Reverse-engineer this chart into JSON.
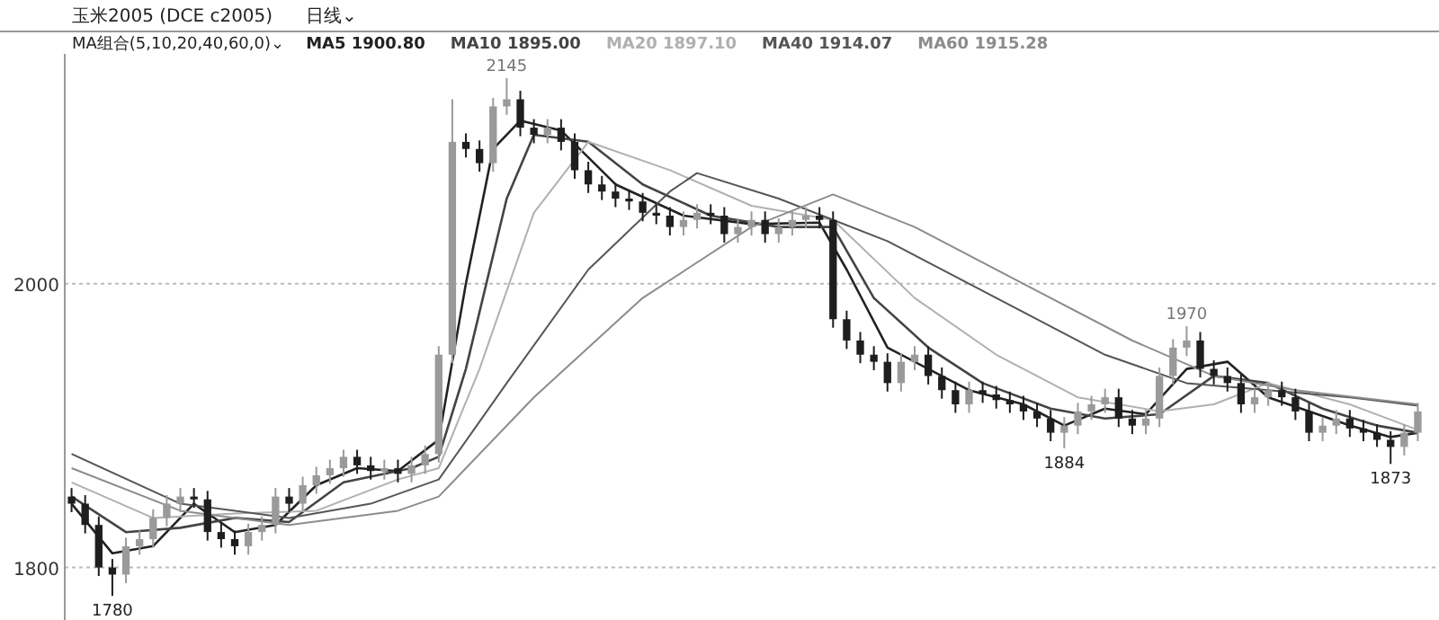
{
  "chart_data": {
    "type": "candlestick",
    "title": "玉米2005 (DCE c2005)",
    "subtitle": "日线⌄",
    "legend_title": "MA组合(5,10,20,40,60,0)⌄",
    "legend": "top left",
    "grid": "y",
    "ylim": [
      1763,
      2162
    ],
    "yticks": [
      1800,
      2000
    ],
    "tick_labels": "y",
    "categories": [
      null,
      null,
      null,
      null,
      null,
      null,
      null,
      null,
      null,
      null,
      null,
      null,
      null,
      null,
      null,
      null,
      null,
      null,
      null,
      null,
      null,
      null,
      null,
      null,
      null,
      null,
      null,
      null,
      null,
      null,
      null,
      null,
      null,
      null,
      null,
      null,
      null,
      null,
      null,
      null,
      null,
      null,
      null,
      null,
      null,
      null,
      null,
      null,
      null,
      null,
      null,
      null,
      null,
      null,
      null,
      null,
      null,
      null,
      null,
      null,
      null,
      null,
      null,
      null,
      null,
      null,
      null,
      null,
      null,
      null,
      null,
      null,
      null,
      null,
      null,
      null,
      null,
      null,
      null,
      null,
      null,
      null,
      null,
      null,
      null,
      null,
      null,
      null,
      null,
      null,
      null,
      null,
      null,
      null,
      null,
      null,
      null,
      null,
      null,
      null
    ],
    "ohlc": [
      [
        1850,
        1856,
        1839,
        1845
      ],
      [
        1845,
        1851,
        1824,
        1830
      ],
      [
        1830,
        1836,
        1794,
        1800
      ],
      [
        1800,
        1806,
        1780,
        1795
      ],
      [
        1795,
        1821,
        1789,
        1815
      ],
      [
        1815,
        1826,
        1809,
        1820
      ],
      [
        1820,
        1841,
        1814,
        1835
      ],
      [
        1835,
        1851,
        1829,
        1845
      ],
      [
        1845,
        1856,
        1839,
        1850
      ],
      [
        1850,
        1856,
        1842,
        1848
      ],
      [
        1848,
        1854,
        1819,
        1825
      ],
      [
        1825,
        1831,
        1814,
        1820
      ],
      [
        1820,
        1826,
        1809,
        1815
      ],
      [
        1815,
        1831,
        1809,
        1825
      ],
      [
        1825,
        1836,
        1819,
        1830
      ],
      [
        1830,
        1856,
        1824,
        1850
      ],
      [
        1850,
        1856,
        1839,
        1845
      ],
      [
        1845,
        1864,
        1839,
        1858
      ],
      [
        1858,
        1871,
        1852,
        1865
      ],
      [
        1865,
        1876,
        1859,
        1870
      ],
      [
        1870,
        1883,
        1864,
        1878
      ],
      [
        1878,
        1883,
        1866,
        1872
      ],
      [
        1872,
        1878,
        1862,
        1868
      ],
      [
        1868,
        1876,
        1862,
        1870
      ],
      [
        1870,
        1876,
        1860,
        1866
      ],
      [
        1866,
        1878,
        1860,
        1872
      ],
      [
        1872,
        1886,
        1866,
        1880
      ],
      [
        1880,
        1956,
        1874,
        1950
      ],
      [
        1950,
        2130,
        1944,
        2100
      ],
      [
        2100,
        2106,
        2089,
        2095
      ],
      [
        2095,
        2101,
        2079,
        2085
      ],
      [
        2085,
        2131,
        2079,
        2125
      ],
      [
        2125,
        2145,
        2119,
        2130
      ],
      [
        2130,
        2136,
        2104,
        2110
      ],
      [
        2110,
        2116,
        2099,
        2105
      ],
      [
        2105,
        2116,
        2099,
        2110
      ],
      [
        2110,
        2116,
        2094,
        2100
      ],
      [
        2100,
        2106,
        2074,
        2080
      ],
      [
        2080,
        2086,
        2064,
        2070
      ],
      [
        2070,
        2076,
        2059,
        2065
      ],
      [
        2065,
        2071,
        2054,
        2060
      ],
      [
        2060,
        2066,
        2052,
        2058
      ],
      [
        2058,
        2064,
        2044,
        2050
      ],
      [
        2050,
        2056,
        2042,
        2048
      ],
      [
        2048,
        2054,
        2034,
        2040
      ],
      [
        2040,
        2051,
        2034,
        2045
      ],
      [
        2045,
        2056,
        2039,
        2050
      ],
      [
        2050,
        2056,
        2042,
        2048
      ],
      [
        2048,
        2054,
        2029,
        2035
      ],
      [
        2035,
        2046,
        2029,
        2040
      ],
      [
        2040,
        2051,
        2034,
        2045
      ],
      [
        2045,
        2051,
        2029,
        2035
      ],
      [
        2035,
        2046,
        2029,
        2040
      ],
      [
        2040,
        2051,
        2034,
        2045
      ],
      [
        2045,
        2054,
        2039,
        2048
      ],
      [
        2048,
        2054,
        2039,
        2045
      ],
      [
        2045,
        2051,
        1969,
        1975
      ],
      [
        1975,
        1981,
        1954,
        1960
      ],
      [
        1960,
        1966,
        1944,
        1950
      ],
      [
        1950,
        1956,
        1939,
        1945
      ],
      [
        1945,
        1951,
        1924,
        1930
      ],
      [
        1930,
        1951,
        1924,
        1945
      ],
      [
        1945,
        1956,
        1939,
        1950
      ],
      [
        1950,
        1956,
        1929,
        1935
      ],
      [
        1935,
        1941,
        1919,
        1925
      ],
      [
        1925,
        1931,
        1909,
        1915
      ],
      [
        1915,
        1931,
        1909,
        1925
      ],
      [
        1925,
        1931,
        1916,
        1922
      ],
      [
        1922,
        1928,
        1912,
        1918
      ],
      [
        1918,
        1924,
        1909,
        1915
      ],
      [
        1915,
        1921,
        1904,
        1910
      ],
      [
        1910,
        1916,
        1899,
        1905
      ],
      [
        1905,
        1911,
        1889,
        1895
      ],
      [
        1895,
        1906,
        1884,
        1900
      ],
      [
        1900,
        1916,
        1894,
        1910
      ],
      [
        1910,
        1921,
        1904,
        1915
      ],
      [
        1915,
        1926,
        1909,
        1920
      ],
      [
        1920,
        1926,
        1899,
        1905
      ],
      [
        1905,
        1911,
        1894,
        1900
      ],
      [
        1900,
        1911,
        1894,
        1905
      ],
      [
        1905,
        1941,
        1899,
        1935
      ],
      [
        1935,
        1961,
        1929,
        1955
      ],
      [
        1955,
        1970,
        1949,
        1960
      ],
      [
        1960,
        1966,
        1934,
        1940
      ],
      [
        1940,
        1946,
        1929,
        1935
      ],
      [
        1935,
        1941,
        1924,
        1930
      ],
      [
        1930,
        1936,
        1909,
        1915
      ],
      [
        1915,
        1926,
        1909,
        1920
      ],
      [
        1920,
        1931,
        1914,
        1925
      ],
      [
        1925,
        1931,
        1914,
        1920
      ],
      [
        1920,
        1926,
        1904,
        1910
      ],
      [
        1910,
        1916,
        1889,
        1895
      ],
      [
        1895,
        1906,
        1889,
        1900
      ],
      [
        1900,
        1911,
        1894,
        1905
      ],
      [
        1905,
        1911,
        1892,
        1898
      ],
      [
        1898,
        1904,
        1889,
        1895
      ],
      [
        1895,
        1901,
        1885,
        1890
      ],
      [
        1890,
        1896,
        1873,
        1885
      ],
      [
        1885,
        1901,
        1879,
        1895
      ],
      [
        1895,
        1916,
        1889,
        1910
      ]
    ],
    "series": [
      {
        "type": "line",
        "name": "MA5 1900.80",
        "color": "#222222",
        "values": [
          1845,
          null,
          null,
          1810,
          null,
          null,
          1815,
          null,
          null,
          1845,
          null,
          null,
          1825,
          null,
          null,
          1830,
          null,
          null,
          1858,
          null,
          null,
          1870,
          null,
          null,
          1868,
          null,
          null,
          1890,
          null,
          2000,
          null,
          2095,
          null,
          2115,
          null,
          null,
          2108,
          null,
          null,
          null,
          2070,
          null,
          null,
          null,
          null,
          2048,
          null,
          null,
          null,
          null,
          2042,
          null,
          null,
          null,
          null,
          2043,
          null,
          2010,
          null,
          null,
          1955,
          null,
          null,
          1940,
          null,
          null,
          1925,
          null,
          null,
          null,
          1915,
          null,
          null,
          1900,
          null,
          null,
          1912,
          null,
          null,
          1908,
          null,
          null,
          1940,
          null,
          null,
          1945,
          null,
          null,
          1920,
          null,
          null,
          1910,
          null,
          null,
          1900,
          null,
          null,
          1892,
          null,
          1895
        ]
      },
      {
        "type": "line",
        "name": "MA10 1895.00",
        "color": "#444444",
        "values": [
          1850,
          null,
          null,
          null,
          1825,
          null,
          null,
          null,
          1828,
          null,
          null,
          null,
          1835,
          null,
          null,
          null,
          1832,
          null,
          null,
          null,
          1860,
          null,
          null,
          null,
          null,
          1870,
          null,
          1878,
          null,
          1940,
          null,
          null,
          2060,
          null,
          2105,
          null,
          null,
          null,
          2100,
          null,
          null,
          null,
          2070,
          null,
          null,
          null,
          null,
          2048,
          null,
          null,
          null,
          null,
          2040,
          null,
          null,
          null,
          2040,
          null,
          null,
          1990,
          null,
          null,
          null,
          1955,
          null,
          null,
          null,
          1930,
          null,
          null,
          null,
          null,
          1912,
          null,
          null,
          null,
          1905,
          null,
          null,
          null,
          1908,
          null,
          null,
          null,
          1935,
          null,
          null,
          null,
          1930,
          null,
          null,
          null,
          1912,
          null,
          null,
          null,
          1900,
          null,
          null,
          1895
        ]
      },
      {
        "type": "line",
        "name": "MA20 1897.10",
        "color": "#b0b0b0",
        "values": [
          1860,
          null,
          null,
          null,
          null,
          null,
          1835,
          null,
          null,
          null,
          null,
          null,
          1838,
          null,
          null,
          null,
          null,
          null,
          1840,
          null,
          null,
          null,
          null,
          null,
          1862,
          null,
          null,
          1870,
          null,
          null,
          1940,
          null,
          null,
          null,
          2050,
          null,
          null,
          null,
          2100,
          null,
          null,
          null,
          null,
          null,
          2080,
          null,
          null,
          null,
          null,
          null,
          2055,
          null,
          null,
          null,
          null,
          null,
          2045,
          null,
          null,
          null,
          null,
          null,
          1990,
          null,
          null,
          null,
          null,
          null,
          1950,
          null,
          null,
          null,
          null,
          null,
          1920,
          null,
          null,
          null,
          null,
          null,
          1910,
          null,
          null,
          null,
          1915,
          null,
          null,
          null,
          1930,
          null,
          null,
          null,
          null,
          null,
          1915,
          null,
          null,
          null,
          null,
          1897
        ]
      },
      {
        "type": "line",
        "name": "MA40 1914.07",
        "color": "#555555",
        "values": [
          1880,
          null,
          null,
          null,
          null,
          null,
          null,
          null,
          1845,
          null,
          null,
          null,
          null,
          null,
          null,
          null,
          1835,
          null,
          null,
          null,
          null,
          null,
          1845,
          null,
          null,
          null,
          null,
          1862,
          null,
          null,
          null,
          null,
          1930,
          null,
          null,
          null,
          null,
          null,
          2010,
          null,
          null,
          null,
          null,
          null,
          2065,
          null,
          2078,
          null,
          null,
          null,
          null,
          null,
          2060,
          null,
          null,
          null,
          null,
          null,
          null,
          null,
          2030,
          null,
          null,
          null,
          null,
          null,
          null,
          null,
          1990,
          null,
          null,
          null,
          null,
          null,
          null,
          null,
          1950,
          null,
          null,
          null,
          null,
          null,
          1930,
          null,
          null,
          null,
          null,
          null,
          1925,
          null,
          null,
          null,
          null,
          null,
          1920,
          null,
          null,
          null,
          null,
          1914
        ]
      },
      {
        "type": "line",
        "name": "MA60 1915.28",
        "color": "#8c8c8c",
        "values": [
          1870,
          null,
          null,
          null,
          null,
          null,
          null,
          null,
          1840,
          null,
          null,
          null,
          null,
          null,
          null,
          null,
          1830,
          null,
          null,
          null,
          null,
          null,
          null,
          null,
          1840,
          null,
          null,
          1850,
          null,
          null,
          null,
          null,
          null,
          null,
          1920,
          null,
          null,
          null,
          null,
          null,
          null,
          null,
          1990,
          null,
          null,
          null,
          null,
          null,
          null,
          null,
          2040,
          null,
          null,
          null,
          null,
          null,
          2063,
          null,
          null,
          null,
          null,
          null,
          2040,
          null,
          null,
          null,
          null,
          null,
          null,
          null,
          2000,
          null,
          null,
          null,
          null,
          null,
          null,
          null,
          1960,
          null,
          null,
          null,
          null,
          null,
          1935,
          null,
          null,
          null,
          null,
          null,
          1925,
          null,
          null,
          null,
          null,
          null,
          null,
          null,
          null,
          1915
        ]
      }
    ],
    "annotations": [
      {
        "text": "2145",
        "y": 2145
      },
      {
        "text": "1884",
        "y": 1884
      },
      {
        "text": "1970",
        "y": 1970
      },
      {
        "text": "1873",
        "y": 1873
      },
      {
        "text": "1780",
        "y": 1780
      }
    ]
  }
}
